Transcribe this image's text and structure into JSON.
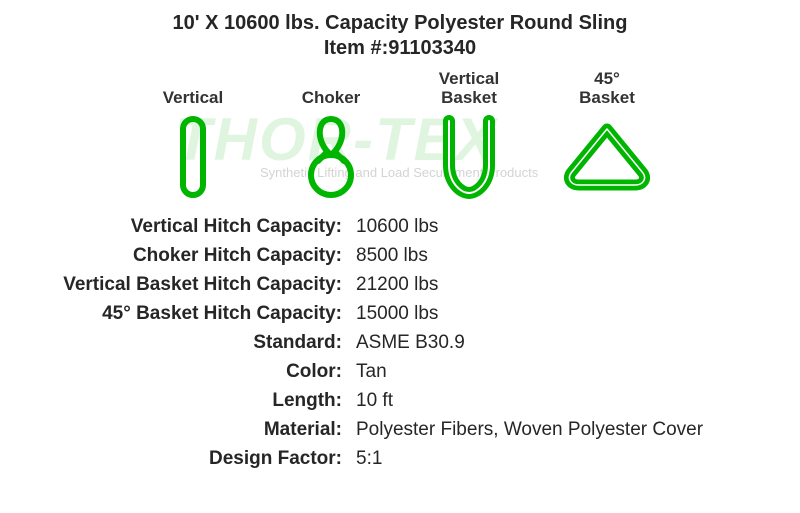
{
  "header": {
    "title": "10' X 10600 lbs. Capacity Polyester Round Sling",
    "item_prefix": "Item #:",
    "item_number": "91103340"
  },
  "watermark": {
    "text": "THOR-TEX",
    "subtext": "Synthetic Lifting and Load Securement Products",
    "color": "rgba(0,170,0,0.12)"
  },
  "diagrams": {
    "stroke_color": "#00b500",
    "stroke_width": 6,
    "items": [
      {
        "label": "Vertical",
        "type": "vertical"
      },
      {
        "label": "Choker",
        "type": "choker"
      },
      {
        "label": "Vertical\nBasket",
        "type": "vertical_basket"
      },
      {
        "label": "45°\nBasket",
        "type": "angle_basket"
      }
    ]
  },
  "specs": [
    {
      "label": "Vertical Hitch Capacity:",
      "value": "10600 lbs"
    },
    {
      "label": "Choker Hitch Capacity:",
      "value": "8500 lbs"
    },
    {
      "label": "Vertical Basket Hitch Capacity:",
      "value": "21200 lbs"
    },
    {
      "label": "45° Basket Hitch Capacity:",
      "value": "15000 lbs"
    },
    {
      "label": "Standard:",
      "value": "ASME B30.9"
    },
    {
      "label": "Color:",
      "value": "Tan"
    },
    {
      "label": "Length:",
      "value": "10 ft"
    },
    {
      "label": "Material:",
      "value": "Polyester Fibers, Woven Polyester Cover"
    },
    {
      "label": "Design Factor:",
      "value": "5:1"
    }
  ],
  "style": {
    "background_color": "#ffffff",
    "text_color": "#262626",
    "title_fontsize": 20,
    "label_fontsize": 19,
    "diagram_label_fontsize": 17
  }
}
